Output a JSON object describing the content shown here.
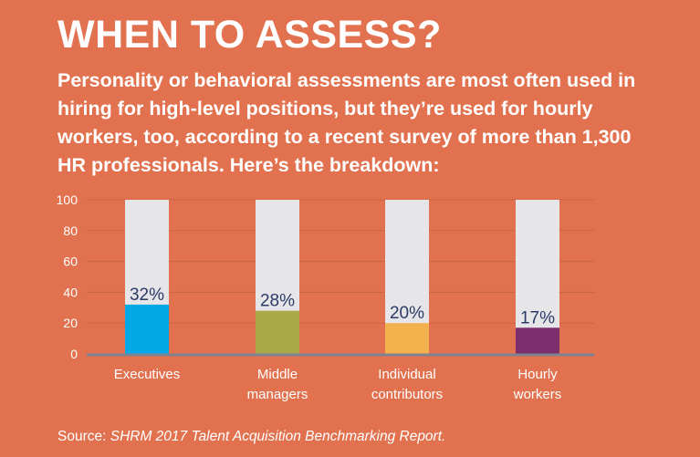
{
  "title": "WHEN TO ASSESS?",
  "subtitle": "Personality or behavioral assessments are most often used in hiring for high-level positions, but they’re used for hourly workers, too, according to a recent survey of more than 1,300 HR professionals. Here’s the breakdown:",
  "source_label": "Source:",
  "source_text": "SHRM 2017 Talent Acquisition Benchmarking Report.",
  "colors": {
    "background": "#E2724F",
    "track": "#E6E6E8",
    "label_text": "#2B3A67"
  },
  "chart_data": {
    "type": "bar",
    "categories": [
      [
        "Executives"
      ],
      [
        "Middle",
        "managers"
      ],
      [
        "Individual",
        "contributors"
      ],
      [
        "Hourly",
        "workers"
      ]
    ],
    "values": [
      32,
      28,
      20,
      17
    ],
    "value_labels": [
      "32%",
      "28%",
      "20%",
      "17%"
    ],
    "bar_colors": [
      "#00A9E6",
      "#A9A94A",
      "#F2B14C",
      "#7B2F6D"
    ],
    "ylim": [
      0,
      100
    ],
    "yticks": [
      "0",
      "20",
      "40",
      "60",
      "80",
      "100"
    ],
    "grid": true,
    "xlabel": "",
    "ylabel": ""
  }
}
